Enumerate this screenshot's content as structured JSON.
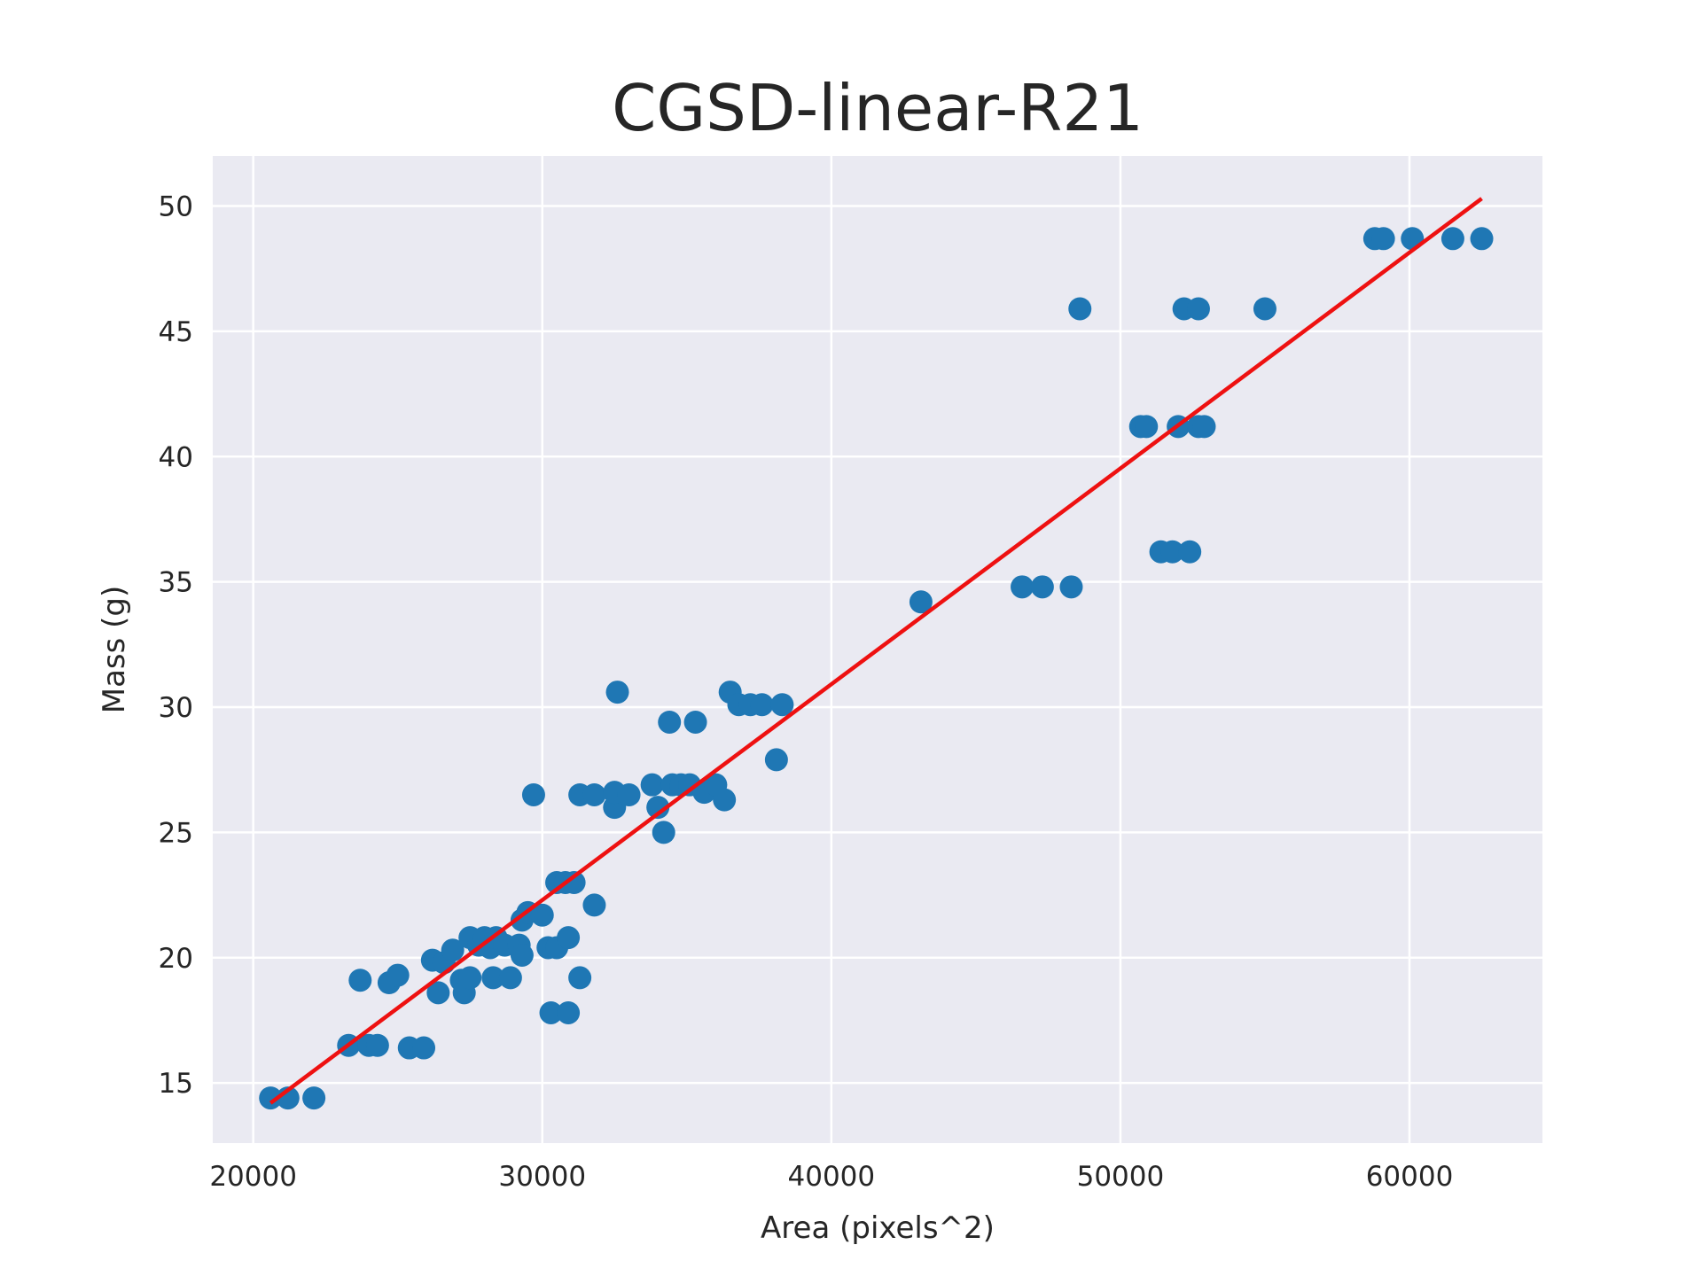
{
  "chart_data": {
    "type": "scatter",
    "title": "CGSD-linear-R21",
    "xlabel": "Area (pixels^2)",
    "ylabel": "Mass (g)",
    "xlim": [
      18600,
      64600
    ],
    "ylim": [
      12.6,
      52.0
    ],
    "xticks": [
      20000,
      30000,
      40000,
      50000,
      60000
    ],
    "yticks": [
      15,
      20,
      25,
      30,
      35,
      40,
      45,
      50
    ],
    "grid": true,
    "legend": "none",
    "colors": {
      "points": "#1f77b4",
      "fit_line": "#ee1111",
      "plot_bg": "#eaeaf2",
      "text": "#262626"
    },
    "series": [
      {
        "type": "scatter",
        "points": [
          [
            20600,
            14.4
          ],
          [
            21200,
            14.4
          ],
          [
            22100,
            14.4
          ],
          [
            23300,
            16.5
          ],
          [
            24000,
            16.5
          ],
          [
            24300,
            16.5
          ],
          [
            25400,
            16.4
          ],
          [
            25900,
            16.4
          ],
          [
            23700,
            19.1
          ],
          [
            24700,
            19.0
          ],
          [
            25000,
            19.3
          ],
          [
            26200,
            19.9
          ],
          [
            26400,
            18.6
          ],
          [
            26600,
            19.8
          ],
          [
            26900,
            20.3
          ],
          [
            27200,
            19.1
          ],
          [
            27300,
            18.6
          ],
          [
            27500,
            20.8
          ],
          [
            27500,
            19.2
          ],
          [
            27800,
            20.5
          ],
          [
            28000,
            20.8
          ],
          [
            28200,
            20.4
          ],
          [
            28300,
            19.2
          ],
          [
            28400,
            20.8
          ],
          [
            28700,
            20.5
          ],
          [
            28900,
            19.2
          ],
          [
            29200,
            20.5
          ],
          [
            29300,
            21.5
          ],
          [
            29300,
            20.1
          ],
          [
            29500,
            21.8
          ],
          [
            29700,
            26.5
          ],
          [
            30000,
            21.7
          ],
          [
            30200,
            20.4
          ],
          [
            30300,
            17.8
          ],
          [
            30500,
            20.4
          ],
          [
            30500,
            23.0
          ],
          [
            30800,
            23.0
          ],
          [
            30900,
            17.8
          ],
          [
            30900,
            20.8
          ],
          [
            31100,
            23.0
          ],
          [
            31300,
            19.2
          ],
          [
            31300,
            26.5
          ],
          [
            31800,
            22.1
          ],
          [
            31800,
            26.5
          ],
          [
            32500,
            26.0
          ],
          [
            32500,
            26.6
          ],
          [
            32600,
            30.6
          ],
          [
            33000,
            26.5
          ],
          [
            33800,
            26.9
          ],
          [
            34000,
            26.0
          ],
          [
            34200,
            25.0
          ],
          [
            34400,
            29.4
          ],
          [
            34500,
            26.9
          ],
          [
            34800,
            26.9
          ],
          [
            35100,
            26.9
          ],
          [
            35300,
            29.4
          ],
          [
            35600,
            26.6
          ],
          [
            36000,
            26.9
          ],
          [
            36300,
            26.3
          ],
          [
            36500,
            30.6
          ],
          [
            36800,
            30.1
          ],
          [
            37200,
            30.1
          ],
          [
            37600,
            30.1
          ],
          [
            38100,
            27.9
          ],
          [
            38300,
            30.1
          ],
          [
            43100,
            34.2
          ],
          [
            46600,
            34.8
          ],
          [
            47300,
            34.8
          ],
          [
            48300,
            34.8
          ],
          [
            48600,
            45.9
          ],
          [
            50700,
            41.2
          ],
          [
            50900,
            41.2
          ],
          [
            51400,
            36.2
          ],
          [
            51800,
            36.2
          ],
          [
            52400,
            36.2
          ],
          [
            52000,
            41.2
          ],
          [
            52700,
            41.2
          ],
          [
            52900,
            41.2
          ],
          [
            52200,
            45.9
          ],
          [
            52700,
            45.9
          ],
          [
            55000,
            45.9
          ],
          [
            58800,
            48.7
          ],
          [
            59100,
            48.7
          ],
          [
            60100,
            48.7
          ],
          [
            61500,
            48.7
          ],
          [
            62500,
            48.7
          ]
        ]
      },
      {
        "type": "line",
        "points": [
          [
            20600,
            14.2
          ],
          [
            62500,
            50.3
          ]
        ]
      }
    ]
  }
}
